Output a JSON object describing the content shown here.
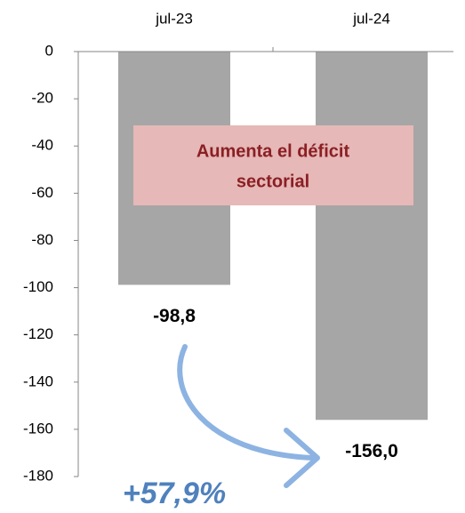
{
  "chart_data": {
    "type": "bar",
    "categories": [
      "jul-23",
      "jul-24"
    ],
    "values": [
      -98.8,
      -156.0
    ],
    "value_labels": [
      "-98,8",
      "-156,0"
    ],
    "color": "#a6a6a6",
    "ylim": [
      -180,
      0
    ],
    "yticks": [
      0,
      -20,
      -40,
      -60,
      -80,
      -100,
      -120,
      -140,
      -160,
      -180
    ],
    "annotation": [
      "Aumenta el déficit",
      "sectorial"
    ],
    "change_label": "+57,9%"
  }
}
